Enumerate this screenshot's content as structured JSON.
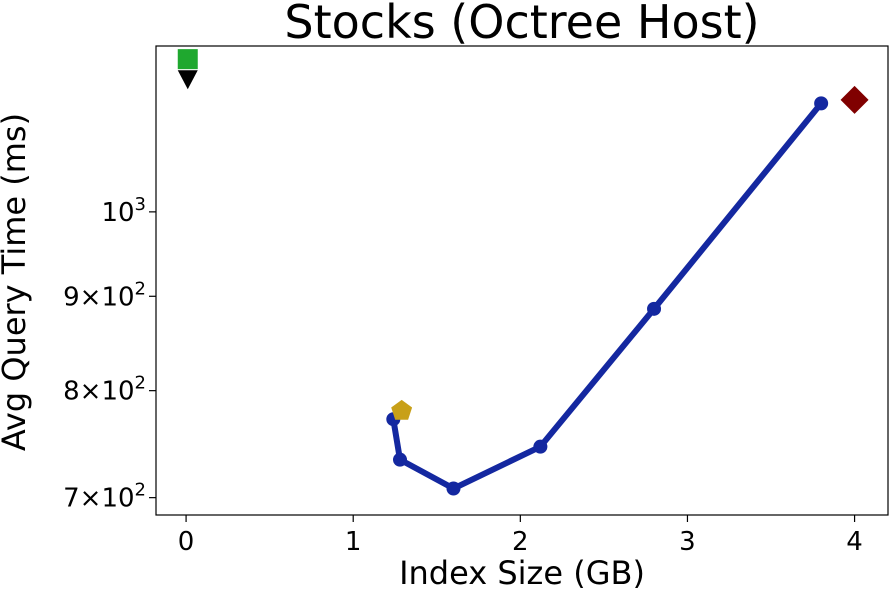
{
  "chart_data": {
    "type": "scatter",
    "title": "Stocks (Octree Host)",
    "xlabel": "Index Size (GB)",
    "ylabel": "Avg Query Time (ms)",
    "xlim": [
      -0.18,
      4.2
    ],
    "ylim": [
      685,
      1230
    ],
    "yscale": "log",
    "grid": false,
    "x_ticks": [
      {
        "value": 0,
        "label": "0"
      },
      {
        "value": 1,
        "label": "1"
      },
      {
        "value": 2,
        "label": "2"
      },
      {
        "value": 3,
        "label": "3"
      },
      {
        "value": 4,
        "label": "4"
      }
    ],
    "y_ticks": [
      {
        "value": 700,
        "base": "7",
        "exp": "2"
      },
      {
        "value": 800,
        "base": "8",
        "exp": "2"
      },
      {
        "value": 900,
        "base": "9",
        "exp": "2"
      },
      {
        "value": 1000,
        "base": "10",
        "exp": "3"
      }
    ],
    "series": [
      {
        "marker": "circle",
        "color": "#1428a0",
        "line": true,
        "points": [
          {
            "x": 1.24,
            "y": 772
          },
          {
            "x": 1.28,
            "y": 734
          },
          {
            "x": 1.6,
            "y": 708
          },
          {
            "x": 2.12,
            "y": 746
          },
          {
            "x": 2.8,
            "y": 886
          },
          {
            "x": 3.8,
            "y": 1145
          }
        ]
      },
      {
        "marker": "pentagon",
        "color": "#c8a018",
        "line": false,
        "points": [
          {
            "x": 1.29,
            "y": 780
          }
        ]
      },
      {
        "marker": "diamond",
        "color": "#800000",
        "line": false,
        "points": [
          {
            "x": 4.0,
            "y": 1150
          }
        ]
      },
      {
        "marker": "square",
        "color": "#1fa82f",
        "line": false,
        "points": [
          {
            "x": 0.01,
            "y": 1210
          }
        ]
      },
      {
        "marker": "triangle-down",
        "color": "#000000",
        "line": false,
        "points": [
          {
            "x": 0.01,
            "y": 1180
          }
        ]
      }
    ]
  }
}
